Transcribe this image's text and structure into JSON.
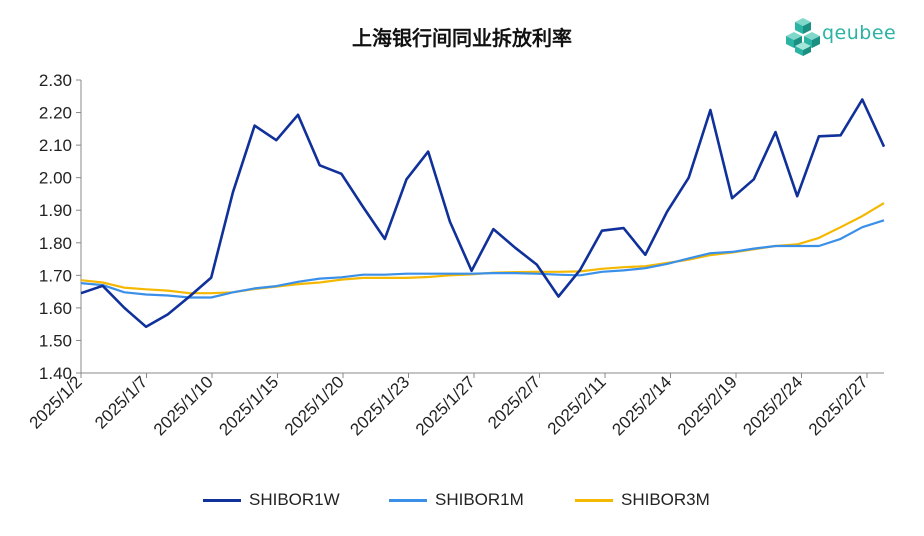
{
  "title": "上海银行间同业拆放利率",
  "logo": {
    "text": "qeubee",
    "icon": "cube-cluster-icon",
    "color": "#2bb3a3"
  },
  "chart_data": {
    "type": "line",
    "title": "上海银行间同业拆放利率",
    "xlabel": "",
    "ylabel": "",
    "ylim": [
      1.4,
      2.3
    ],
    "yticks": [
      "1.40",
      "1.50",
      "1.60",
      "1.70",
      "1.80",
      "1.90",
      "2.00",
      "2.10",
      "2.20",
      "2.30"
    ],
    "xticks": [
      "2025/1/2",
      "2025/1/7",
      "2025/1/10",
      "2025/1/15",
      "2025/1/20",
      "2025/1/23",
      "2025/1/27",
      "2025/2/7",
      "2025/2/11",
      "2025/2/14",
      "2025/2/19",
      "2025/2/24",
      "2025/2/27"
    ],
    "grid": false,
    "legend_position": "bottom",
    "series": [
      {
        "name": "SHIBOR1W",
        "color": "#10309a",
        "values": [
          1.645,
          1.668,
          1.6,
          1.542,
          1.58,
          1.635,
          1.693,
          1.955,
          2.16,
          2.115,
          2.193,
          2.038,
          2.012,
          1.91,
          1.812,
          1.995,
          2.08,
          1.865,
          1.714,
          1.842,
          1.785,
          1.733,
          1.635,
          1.717,
          1.837,
          1.845,
          1.763,
          1.895,
          2.0,
          2.208,
          1.937,
          1.995,
          2.14,
          1.943,
          2.127,
          2.13,
          2.24,
          2.095
        ]
      },
      {
        "name": "SHIBOR1M",
        "color": "#3a8fe8",
        "values": [
          1.676,
          1.67,
          1.648,
          1.641,
          1.638,
          1.632,
          1.632,
          1.648,
          1.66,
          1.667,
          1.68,
          1.69,
          1.694,
          1.702,
          1.702,
          1.705,
          1.705,
          1.705,
          1.705,
          1.707,
          1.707,
          1.705,
          1.702,
          1.7,
          1.711,
          1.715,
          1.722,
          1.735,
          1.752,
          1.768,
          1.772,
          1.782,
          1.79,
          1.79,
          1.79,
          1.812,
          1.848,
          1.869
        ]
      },
      {
        "name": "SHIBOR3M",
        "color": "#f5b800",
        "values": [
          1.685,
          1.678,
          1.662,
          1.657,
          1.653,
          1.645,
          1.645,
          1.648,
          1.658,
          1.665,
          1.673,
          1.678,
          1.687,
          1.692,
          1.692,
          1.692,
          1.695,
          1.7,
          1.703,
          1.708,
          1.71,
          1.711,
          1.711,
          1.712,
          1.72,
          1.725,
          1.728,
          1.738,
          1.748,
          1.762,
          1.77,
          1.78,
          1.79,
          1.795,
          1.815,
          1.848,
          1.882,
          1.922
        ]
      }
    ]
  }
}
